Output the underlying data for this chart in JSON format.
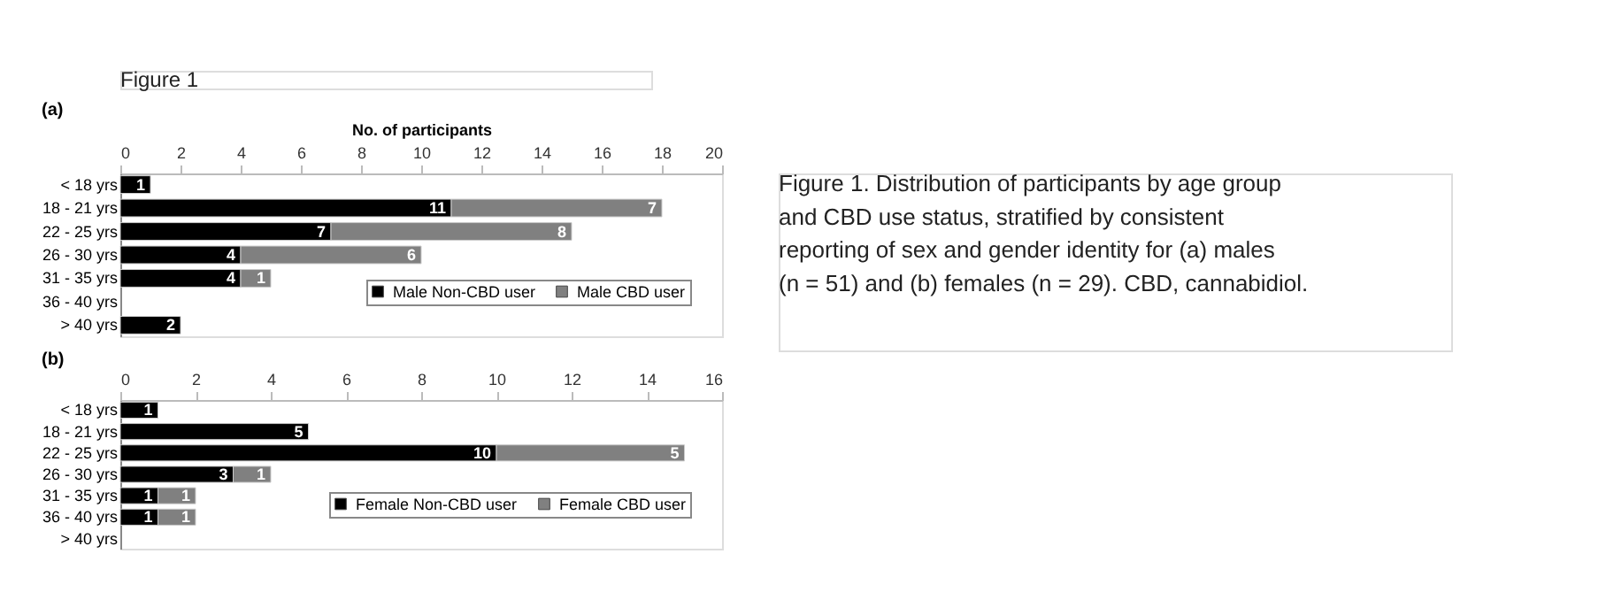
{
  "chart_data": [
    {
      "type": "bar",
      "orientation": "horizontal",
      "stacked": true,
      "title": "(a)",
      "xlabel": "No. of participants",
      "annotations": [
        "Figure 1",
        "Figure 1. Distribution of participants by age group and CBD use status, stratified by consistent reporting of sex and gender identity for (a) males (n = 51) and (b) females (n = 29). CBD, cannabidiol."
      ],
      "categories": [
        "< 18 yrs",
        "18 - 21 yrs",
        "22 - 25 yrs",
        "26 - 30 yrs",
        "31 - 35 yrs",
        "36 - 40 yrs",
        "> 40 yrs"
      ],
      "series": [
        {
          "name": "Male Non-CBD user",
          "color": "#000000",
          "values": [
            1,
            11,
            7,
            4,
            4,
            null,
            2
          ]
        },
        {
          "name": "Male CBD user",
          "color": "#808080",
          "values": [
            null,
            7,
            8,
            6,
            1,
            null,
            null
          ]
        }
      ],
      "xlim": [
        0,
        20
      ],
      "xticks": [
        0,
        2,
        4,
        6,
        8,
        10,
        12,
        14,
        16,
        18,
        20
      ],
      "data_labels": true,
      "legend": "bottom right",
      "grid": false
    },
    {
      "type": "bar",
      "orientation": "horizontal",
      "stacked": true,
      "title": "(b)",
      "categories": [
        "< 18 yrs",
        "18 - 21 yrs",
        "22 - 25 yrs",
        "26 - 30 yrs",
        "31 - 35 yrs",
        "36 - 40 yrs",
        "> 40 yrs"
      ],
      "series": [
        {
          "name": "Female Non-CBD user",
          "color": "#000000",
          "values": [
            1,
            5,
            10,
            3,
            1,
            1,
            null
          ]
        },
        {
          "name": "Female CBD user",
          "color": "#808080",
          "values": [
            null,
            null,
            5,
            1,
            1,
            1,
            null
          ]
        }
      ],
      "xlim": [
        0,
        16
      ],
      "xticks": [
        0,
        2,
        4,
        6,
        8,
        10,
        12,
        14,
        16
      ],
      "data_labels": true,
      "legend": "bottom right",
      "grid": false
    }
  ]
}
